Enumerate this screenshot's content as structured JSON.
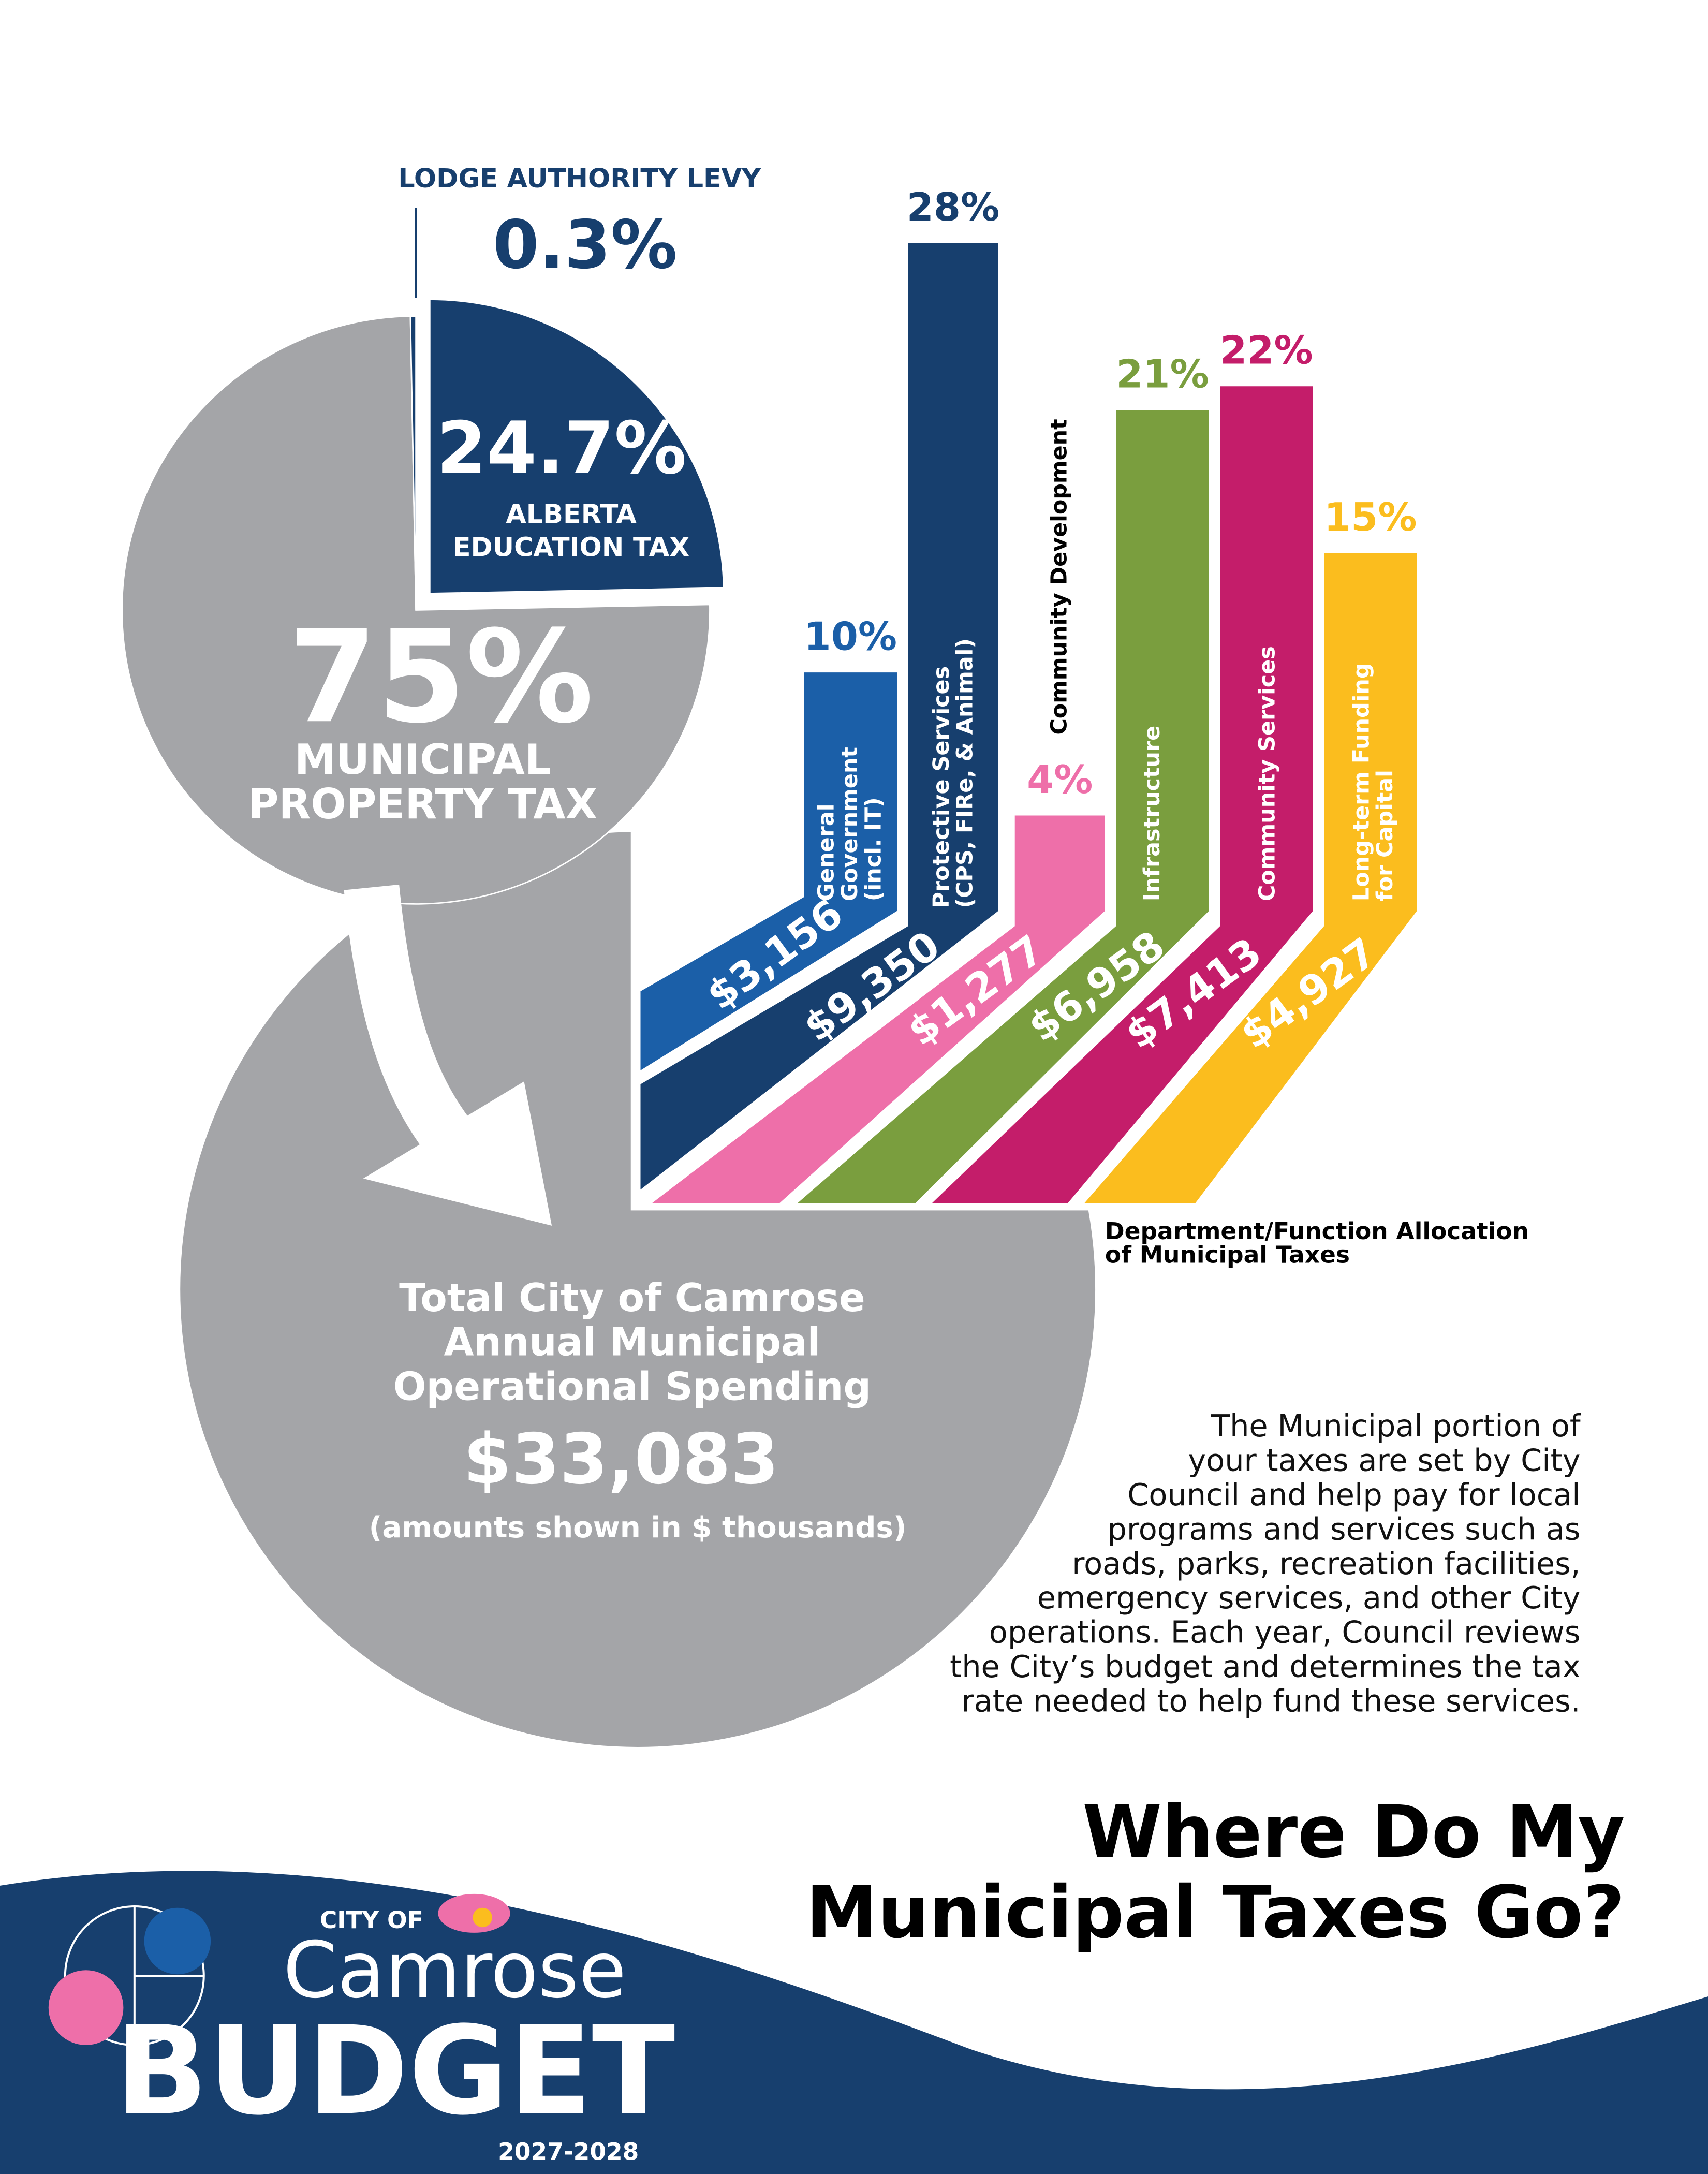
{
  "chart_data": [
    {
      "type": "pie",
      "categories": [
        [
          "ALBERTA",
          "EDUCATION TAX"
        ],
        [
          "MUNICIPAL",
          "PROPERTY TAX"
        ],
        [
          "LODGE AUTHORITY LEVY"
        ]
      ],
      "values": [
        24.7,
        75,
        0.3
      ],
      "value_labels": [
        "24.7%",
        "75%",
        "0.3%"
      ],
      "colors": [
        "#173f6e",
        "#a4a5a8",
        "#173f6e"
      ]
    },
    {
      "type": "bar",
      "title": [
        "Department/Function Allocation",
        "of Municipal Taxes"
      ],
      "categories": [
        [
          "General",
          "Government",
          "(incl. IT)"
        ],
        [
          "Protective Services",
          "(CPS, FIRe, & Animal)"
        ],
        [
          "Community Development"
        ],
        [
          "Infrastructure"
        ],
        [
          "Community Services"
        ],
        [
          "Long-term Funding",
          "for Capital"
        ]
      ],
      "values": [
        10,
        28,
        4,
        21,
        22,
        15
      ],
      "value_labels": [
        "10%",
        "28%",
        "4%",
        "21%",
        "22%",
        "15%"
      ],
      "amounts": [
        "$3,156",
        "$9,350",
        "$1,277",
        "$6,958",
        "$7,413",
        "$4,927"
      ],
      "colors": [
        "#1b5fa8",
        "#173f6e",
        "#ee6fa9",
        "#7a9e3e",
        "#c41d6a",
        "#fbbd1e"
      ]
    }
  ],
  "total": {
    "title": [
      "Total City of Camrose",
      "Annual Municipal",
      "Operational Spending"
    ],
    "label": "$33,083",
    "note": "(amounts shown in $ thousands)"
  },
  "body_text": [
    "The Municipal portion of",
    "your taxes are set by City",
    "Council and help pay for local",
    "programs and services such as",
    "roads, parks, recreation facilities,",
    "emergency services, and other City",
    "operations. Each year, Council reviews",
    "the City’s budget and determines the tax",
    "rate needed to help fund these services."
  ],
  "headline": [
    "Where Do My",
    "Municipal Taxes Go?"
  ],
  "logo": {
    "city_of": "CITY OF",
    "name": "Camrose",
    "budget": "BUDGET",
    "years": "2027-2028"
  }
}
